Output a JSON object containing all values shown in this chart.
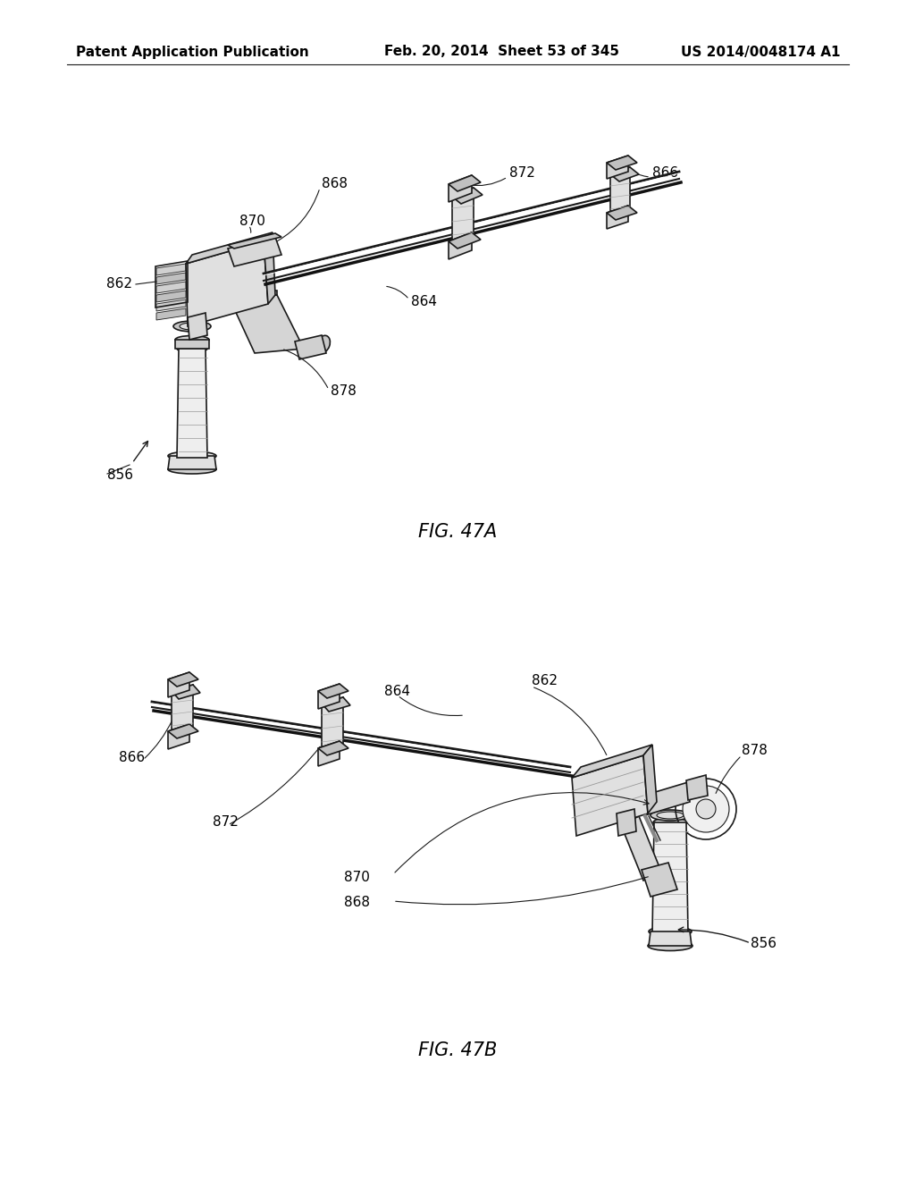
{
  "background_color": "#ffffff",
  "header_left": "Patent Application Publication",
  "header_middle": "Feb. 20, 2014  Sheet 53 of 345",
  "header_right": "US 2014/0048174 A1",
  "fig_47a_label": "FIG. 47A",
  "fig_47b_label": "FIG. 47B",
  "line_color": "#1a1a1a",
  "text_color": "#000000",
  "header_fontsize": 11,
  "caption_fontsize": 15,
  "label_fontsize": 11
}
